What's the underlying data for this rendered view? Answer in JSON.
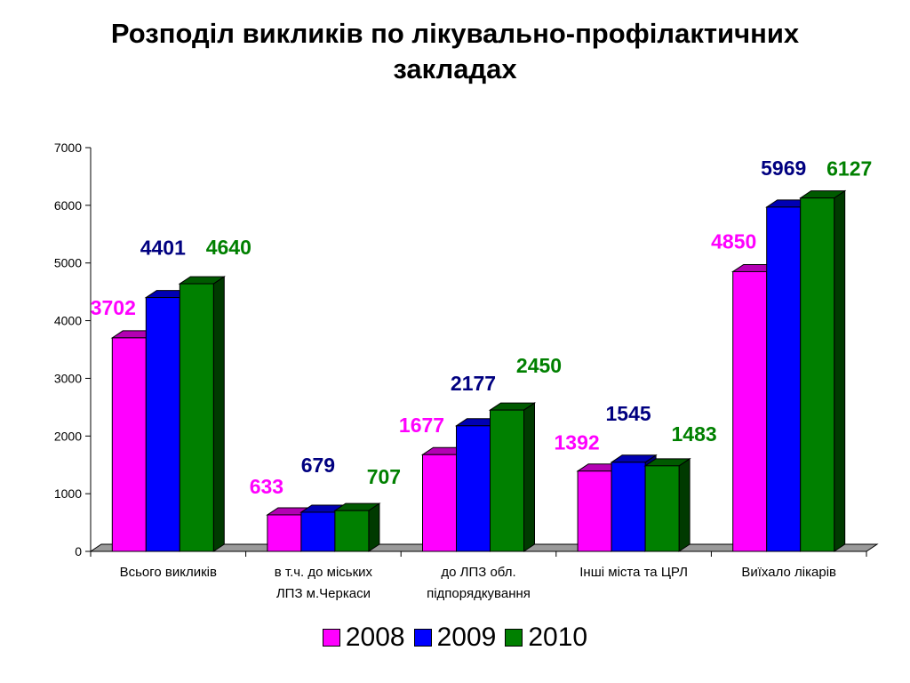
{
  "chart_data": {
    "type": "bar",
    "title": "Розподіл викликів по лікувально-профілактичних закладах",
    "title_lines": [
      "Розподіл викликів по лікувально-профілактичних",
      "закладах"
    ],
    "categories": [
      [
        "Всього викликів"
      ],
      [
        "в т.ч. до міських",
        "ЛПЗ м.Черкаси"
      ],
      [
        "до ЛПЗ обл.",
        "підпорядкування"
      ],
      [
        "Інші міста та ЦРЛ"
      ],
      [
        "Виїхало лікарів"
      ]
    ],
    "series": [
      {
        "name": "2008",
        "values": [
          3702,
          633,
          1677,
          1392,
          4850
        ],
        "color": "#FF00FF",
        "label_color": "#FF00FF"
      },
      {
        "name": "2009",
        "values": [
          4401,
          679,
          2177,
          1545,
          5969
        ],
        "color": "#0000FF",
        "label_color": "#000080"
      },
      {
        "name": "2010",
        "values": [
          4640,
          707,
          2450,
          1483,
          6127
        ],
        "color": "#008000",
        "label_color": "#008000"
      }
    ],
    "ylim": [
      0,
      7000
    ],
    "yticks": [
      0,
      1000,
      2000,
      3000,
      4000,
      5000,
      6000,
      7000
    ],
    "xlabel": "",
    "ylabel": "",
    "grid": false,
    "legend_position": "bottom",
    "style": "3d-clustered-column"
  }
}
